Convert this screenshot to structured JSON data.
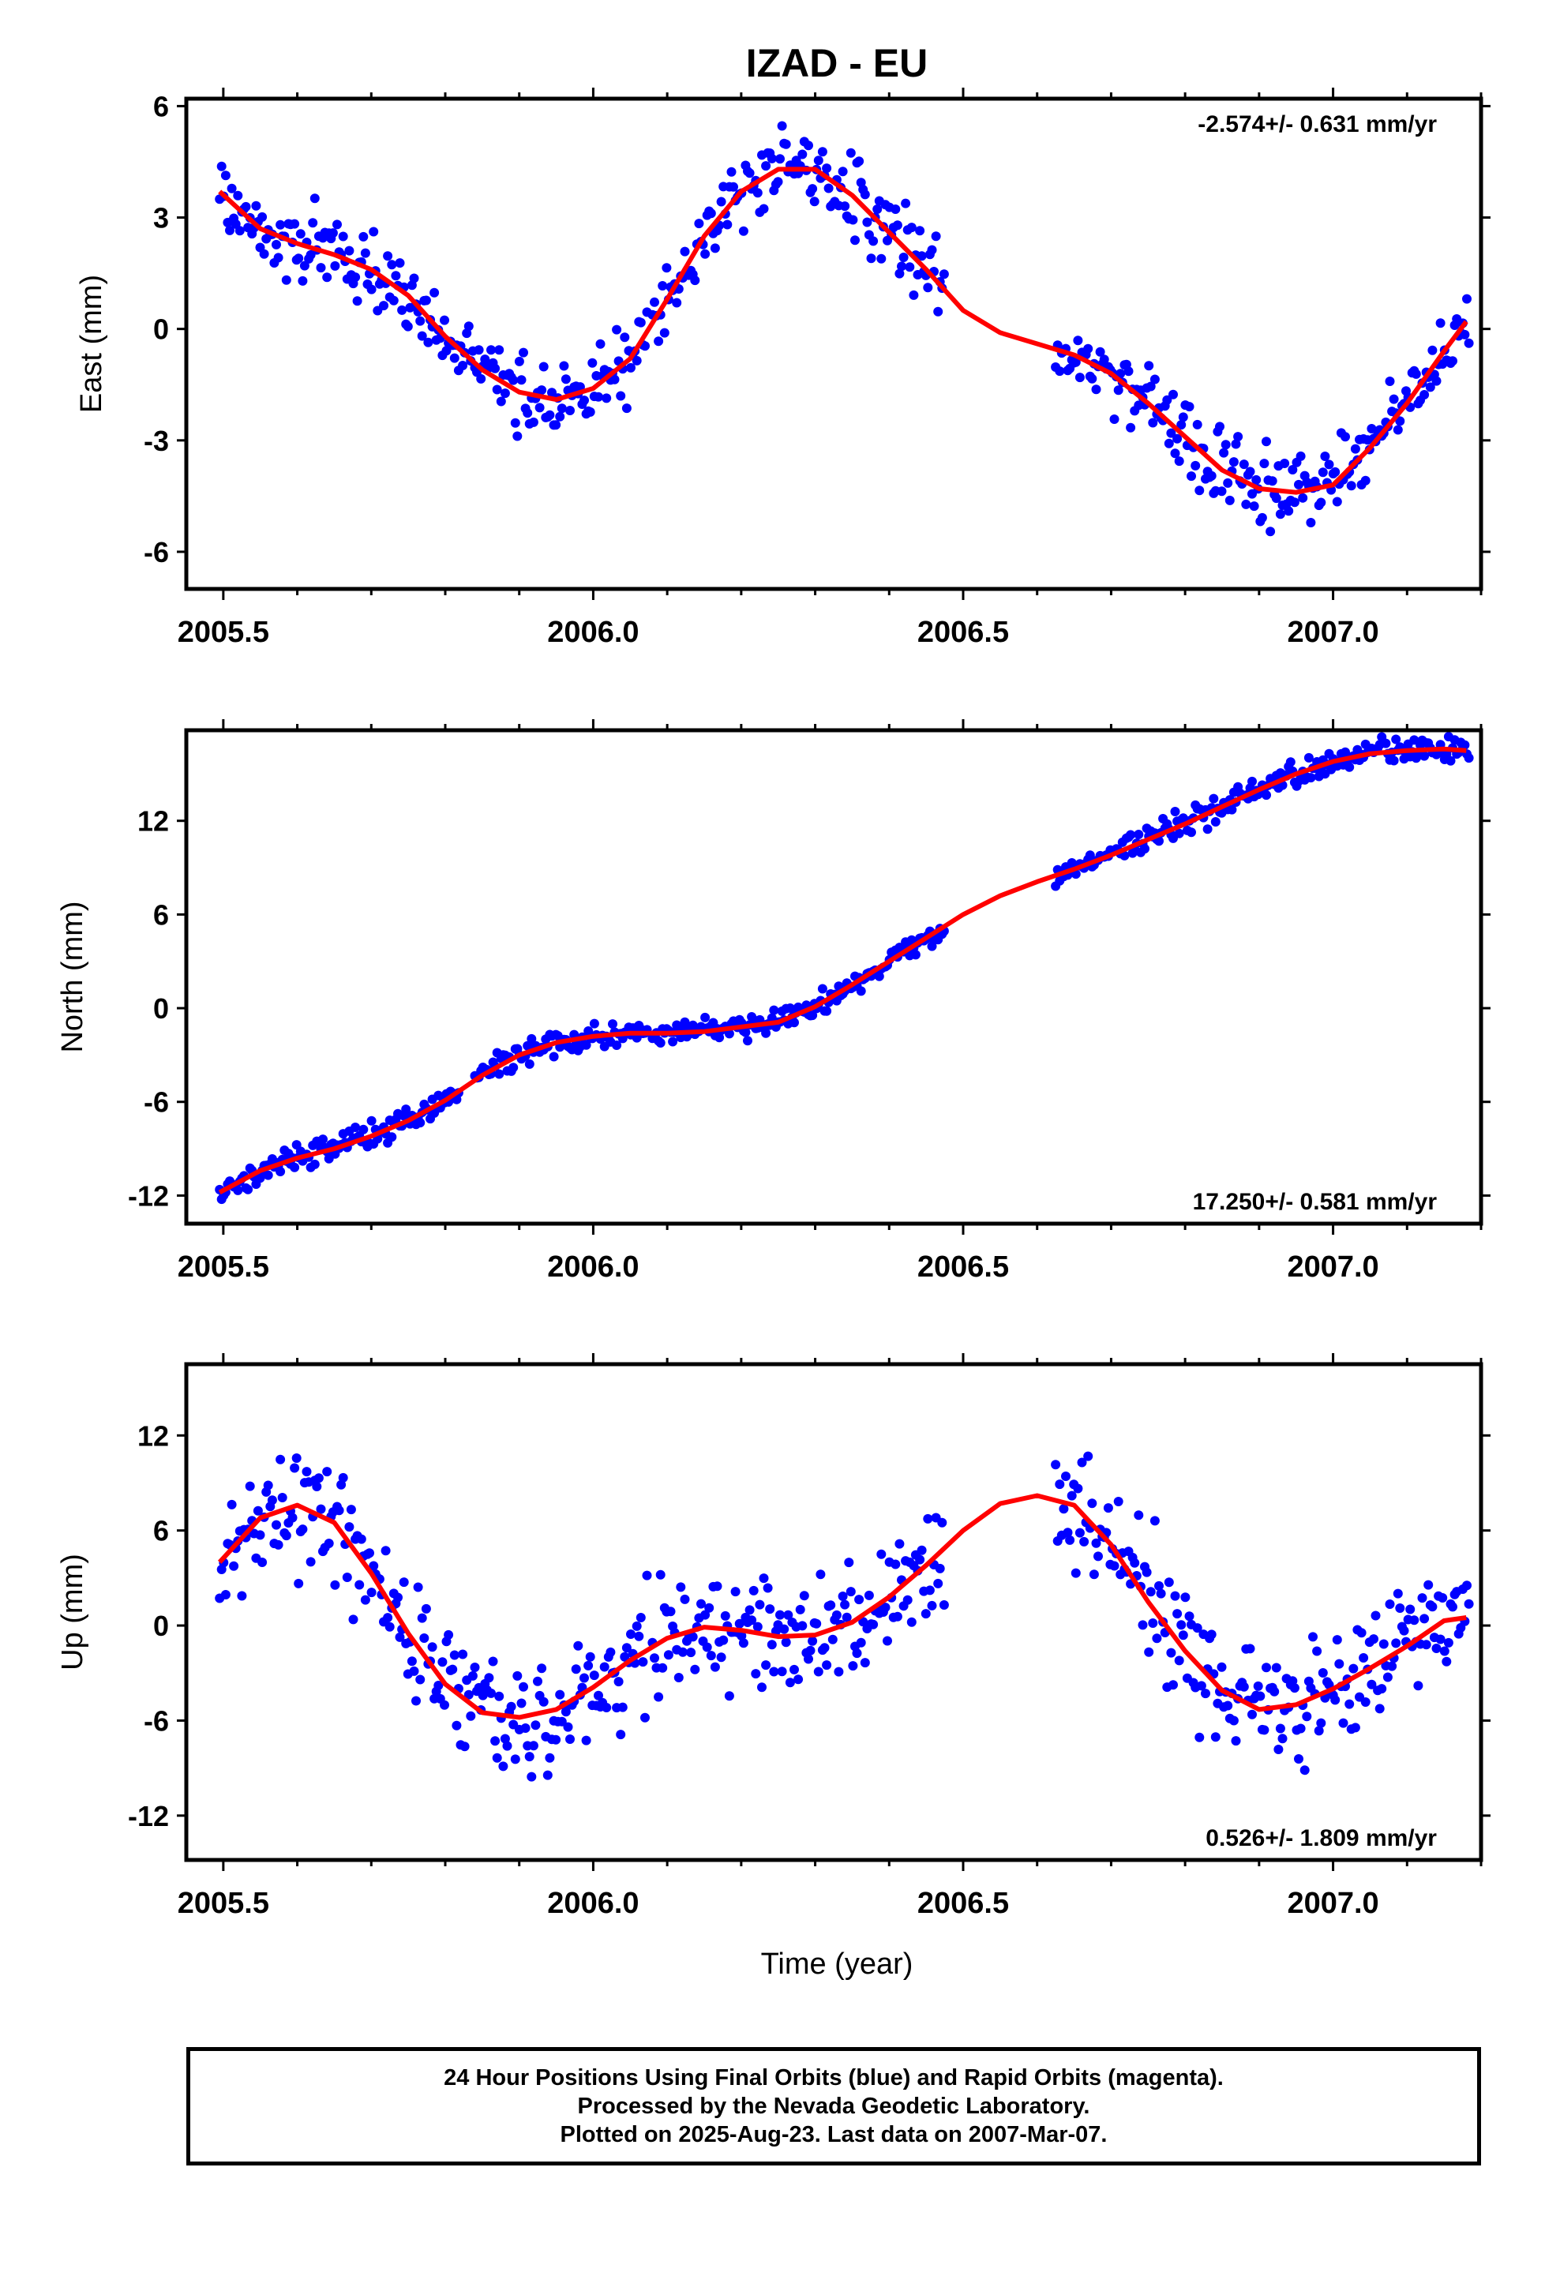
{
  "figure_title": "IZAD - EU",
  "time_axis_label": "Time (year)",
  "colors": {
    "final_orbits": "#0000ff",
    "fit_curve": "#ff0000",
    "frame": "#000000"
  },
  "footer": {
    "line1": "24 Hour Positions Using Final Orbits (blue) and Rapid Orbits (magenta).",
    "line2": "Processed by the Nevada Geodetic Laboratory.",
    "line3": "Plotted on 2025-Aug-23. Last data on 2007-Mar-07."
  },
  "chart_data": [
    {
      "type": "scatter",
      "ylabel": "East (mm)",
      "rate_label": "-2.574+/- 0.631 mm/yr",
      "rate_position": "top-right",
      "xlim": [
        2005.45,
        2007.2
      ],
      "ylim": [
        -7,
        6.2
      ],
      "xticks": [
        2005.5,
        2006.0,
        2006.5,
        2007.0
      ],
      "xtick_labels": [
        "2005.5",
        "2006.0",
        "2006.5",
        "2007.0"
      ],
      "yticks": [
        6,
        3,
        0,
        -3,
        -6
      ],
      "ytick_labels": [
        "6",
        "3",
        "0",
        "-3",
        "-6"
      ],
      "series": [
        {
          "kind": "daily-positions",
          "color": "#0000ff",
          "segments": [
            [
              2005.495,
              2006.075
            ],
            [
              2006.08,
              2006.475
            ],
            [
              2006.625,
              2007.185
            ]
          ],
          "noise": 0.75
        },
        {
          "kind": "fit-curve",
          "color": "#ff0000",
          "x": [
            2005.495,
            2005.55,
            2005.6,
            2005.65,
            2005.7,
            2005.75,
            2005.8,
            2005.85,
            2005.9,
            2005.95,
            2006.0,
            2006.05,
            2006.1,
            2006.15,
            2006.2,
            2006.25,
            2006.3,
            2006.35,
            2006.4,
            2006.45,
            2006.5,
            2006.55,
            2006.6,
            2006.65,
            2006.7,
            2006.75,
            2006.8,
            2006.85,
            2006.9,
            2006.95,
            2007.0,
            2007.05,
            2007.1,
            2007.15,
            2007.18
          ],
          "y": [
            3.7,
            2.7,
            2.3,
            2.0,
            1.6,
            0.9,
            -0.2,
            -1.1,
            -1.7,
            -1.9,
            -1.6,
            -0.8,
            0.8,
            2.5,
            3.7,
            4.3,
            4.3,
            3.6,
            2.6,
            1.6,
            0.5,
            -0.1,
            -0.4,
            -0.7,
            -1.2,
            -2.0,
            -2.9,
            -3.8,
            -4.3,
            -4.4,
            -4.2,
            -3.2,
            -2.0,
            -0.6,
            0.2
          ]
        }
      ]
    },
    {
      "type": "scatter",
      "ylabel": "North (mm)",
      "rate_label": "17.250+/- 0.581 mm/yr",
      "rate_position": "bottom-right",
      "xlim": [
        2005.45,
        2007.2
      ],
      "ylim": [
        -13.8,
        17.8
      ],
      "xticks": [
        2005.5,
        2006.0,
        2006.5,
        2007.0
      ],
      "xtick_labels": [
        "2005.5",
        "2006.0",
        "2006.5",
        "2007.0"
      ],
      "yticks": [
        12,
        6,
        0,
        -6,
        -12
      ],
      "ytick_labels": [
        "12",
        "6",
        "0",
        "-6",
        "-12"
      ],
      "series": [
        {
          "kind": "daily-positions",
          "color": "#0000ff",
          "segments": [
            [
              2005.495,
              2005.82
            ],
            [
              2005.84,
              2006.075
            ],
            [
              2006.08,
              2006.475
            ],
            [
              2006.625,
              2007.185
            ]
          ],
          "noise": 0.6
        },
        {
          "kind": "fit-curve",
          "color": "#ff0000",
          "x": [
            2005.495,
            2005.55,
            2005.6,
            2005.65,
            2005.7,
            2005.75,
            2005.8,
            2005.85,
            2005.9,
            2005.95,
            2006.0,
            2006.05,
            2006.1,
            2006.15,
            2006.2,
            2006.25,
            2006.3,
            2006.35,
            2006.4,
            2006.45,
            2006.5,
            2006.55,
            2006.6,
            2006.65,
            2006.7,
            2006.75,
            2006.8,
            2006.85,
            2006.9,
            2006.95,
            2007.0,
            2007.05,
            2007.1,
            2007.15,
            2007.18
          ],
          "y": [
            -11.8,
            -10.4,
            -9.6,
            -9.0,
            -8.2,
            -7.2,
            -5.9,
            -4.3,
            -3.0,
            -2.2,
            -1.8,
            -1.6,
            -1.6,
            -1.5,
            -1.2,
            -0.9,
            0.1,
            1.5,
            3.0,
            4.5,
            6.0,
            7.2,
            8.1,
            8.9,
            9.8,
            10.8,
            11.8,
            12.9,
            14.0,
            15.0,
            15.8,
            16.3,
            16.5,
            16.6,
            16.5
          ]
        }
      ]
    },
    {
      "type": "scatter",
      "ylabel": "Up (mm)",
      "rate_label": "0.526+/- 1.809 mm/yr",
      "rate_position": "bottom-right",
      "xlim": [
        2005.45,
        2007.2
      ],
      "ylim": [
        -14.8,
        16.5
      ],
      "xticks": [
        2005.5,
        2006.0,
        2006.5,
        2007.0
      ],
      "xtick_labels": [
        "2005.5",
        "2006.0",
        "2006.5",
        "2007.0"
      ],
      "yticks": [
        12,
        6,
        0,
        -6,
        -12
      ],
      "ytick_labels": [
        "12",
        "6",
        "0",
        "-6",
        "-12"
      ],
      "series": [
        {
          "kind": "daily-positions",
          "color": "#0000ff",
          "segments": [
            [
              2005.495,
              2006.075
            ],
            [
              2006.08,
              2006.475
            ],
            [
              2006.625,
              2007.185
            ]
          ],
          "noise": 2.6
        },
        {
          "kind": "fit-curve",
          "color": "#ff0000",
          "x": [
            2005.495,
            2005.55,
            2005.6,
            2005.65,
            2005.7,
            2005.75,
            2005.8,
            2005.85,
            2005.9,
            2005.95,
            2006.0,
            2006.05,
            2006.1,
            2006.15,
            2006.2,
            2006.25,
            2006.3,
            2006.35,
            2006.4,
            2006.45,
            2006.5,
            2006.55,
            2006.6,
            2006.65,
            2006.7,
            2006.75,
            2006.8,
            2006.85,
            2006.9,
            2006.95,
            2007.0,
            2007.05,
            2007.1,
            2007.15,
            2007.18
          ],
          "y": [
            4.0,
            6.8,
            7.6,
            6.5,
            3.3,
            -0.5,
            -3.7,
            -5.5,
            -5.8,
            -5.3,
            -3.9,
            -2.2,
            -0.8,
            -0.1,
            -0.3,
            -0.7,
            -0.6,
            0.2,
            1.8,
            3.8,
            6.0,
            7.7,
            8.2,
            7.6,
            5.1,
            1.5,
            -1.6,
            -4.1,
            -5.3,
            -5.0,
            -4.0,
            -2.7,
            -1.3,
            0.3,
            0.5
          ]
        }
      ]
    }
  ]
}
